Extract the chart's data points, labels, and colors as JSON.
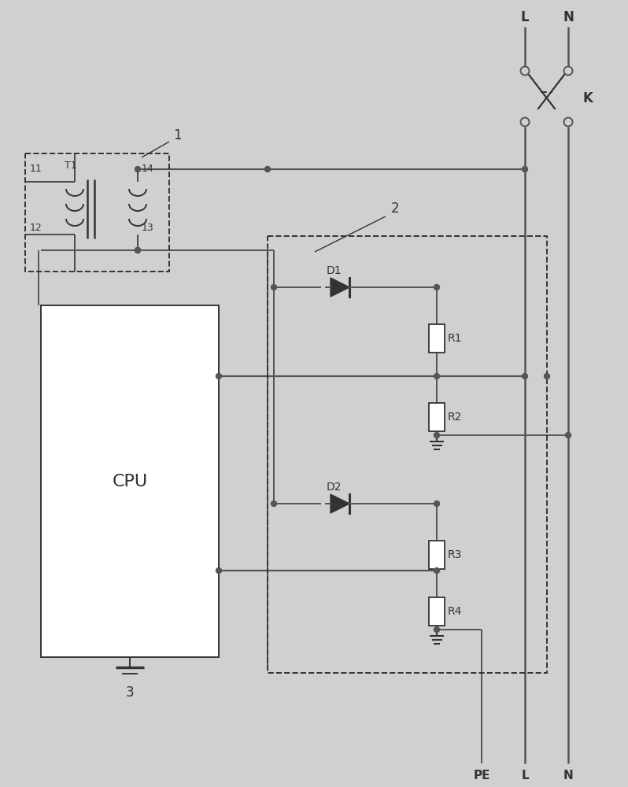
{
  "bg_color": "#d0d0d0",
  "line_color": "#555555",
  "comp_color": "#333333",
  "labels": {
    "L_top": "L",
    "N_top": "N",
    "K": "K",
    "label1": "1",
    "label2": "2",
    "label3": "3",
    "label11": "11",
    "label12": "12",
    "label13": "13",
    "label14": "14",
    "labelT1": "T1",
    "labelD1": "D1",
    "labelD2": "D2",
    "labelR1": "R1",
    "labelR2": "R2",
    "labelR3": "R3",
    "labelR4": "R4",
    "CPU": "CPU",
    "PE": "PE",
    "L_bot": "L",
    "N_bot": "N"
  }
}
